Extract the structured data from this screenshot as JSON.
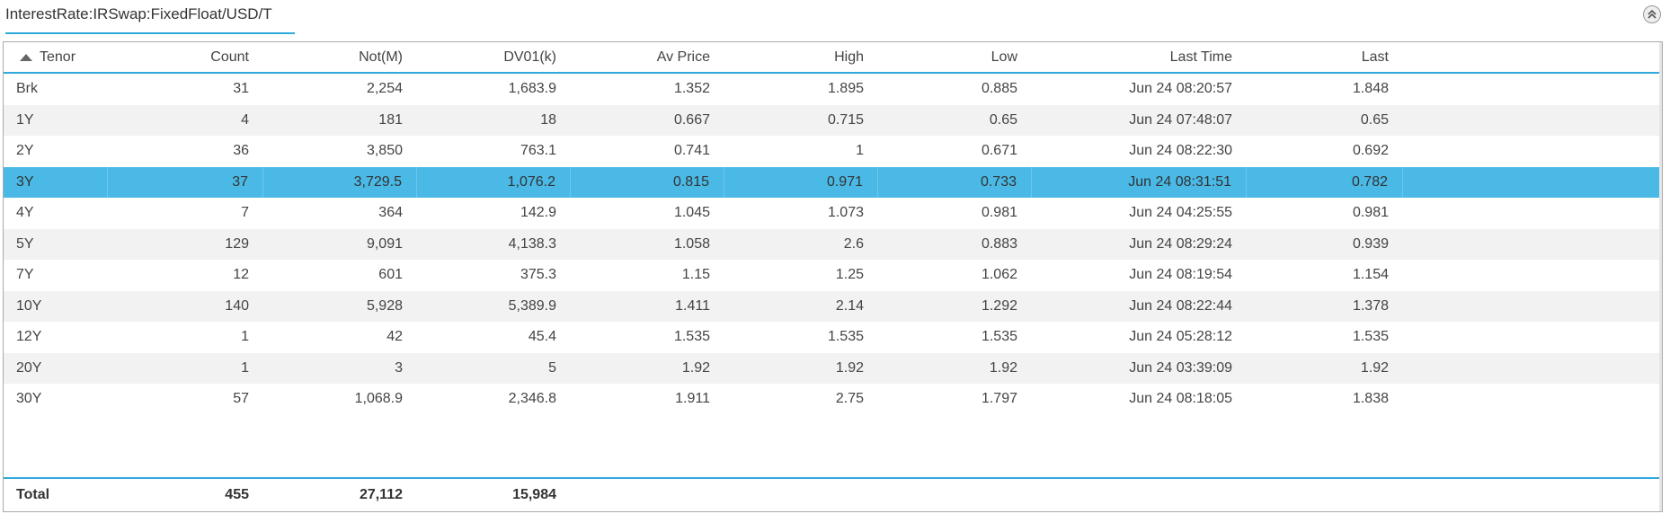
{
  "tab": {
    "title": "InterestRate:IRSwap:FixedFloat/USD/T"
  },
  "collapse_icon": "double-chevron-up-icon",
  "columns": [
    "Tenor",
    "Count",
    "Not(M)",
    "DV01(k)",
    "Av Price",
    "High",
    "Low",
    "Last Time",
    "Last"
  ],
  "sorted_column": "Tenor",
  "selected_row": "3Y",
  "rows": [
    [
      "Brk",
      "31",
      "2,254",
      "1,683.9",
      "1.352",
      "1.895",
      "0.885",
      "Jun 24 08:20:57",
      "1.848"
    ],
    [
      "1Y",
      "4",
      "181",
      "18",
      "0.667",
      "0.715",
      "0.65",
      "Jun 24 07:48:07",
      "0.65"
    ],
    [
      "2Y",
      "36",
      "3,850",
      "763.1",
      "0.741",
      "1",
      "0.671",
      "Jun 24 08:22:30",
      "0.692"
    ],
    [
      "3Y",
      "37",
      "3,729.5",
      "1,076.2",
      "0.815",
      "0.971",
      "0.733",
      "Jun 24 08:31:51",
      "0.782"
    ],
    [
      "4Y",
      "7",
      "364",
      "142.9",
      "1.045",
      "1.073",
      "0.981",
      "Jun 24 04:25:55",
      "0.981"
    ],
    [
      "5Y",
      "129",
      "9,091",
      "4,138.3",
      "1.058",
      "2.6",
      "0.883",
      "Jun 24 08:29:24",
      "0.939"
    ],
    [
      "7Y",
      "12",
      "601",
      "375.3",
      "1.15",
      "1.25",
      "1.062",
      "Jun 24 08:19:54",
      "1.154"
    ],
    [
      "10Y",
      "140",
      "5,928",
      "5,389.9",
      "1.411",
      "2.14",
      "1.292",
      "Jun 24 08:22:44",
      "1.378"
    ],
    [
      "12Y",
      "1",
      "42",
      "45.4",
      "1.535",
      "1.535",
      "1.535",
      "Jun 24 05:28:12",
      "1.535"
    ],
    [
      "20Y",
      "1",
      "3",
      "5",
      "1.92",
      "1.92",
      "1.92",
      "Jun 24 03:39:09",
      "1.92"
    ],
    [
      "30Y",
      "57",
      "1,068.9",
      "2,346.8",
      "1.911",
      "2.75",
      "1.797",
      "Jun 24 08:18:05",
      "1.838"
    ]
  ],
  "totals": [
    "Total",
    "455",
    "27,112",
    "15,984",
    "",
    "",
    "",
    "",
    ""
  ],
  "colors": {
    "accent": "#2fa9dc",
    "selected_row": "#4ab9e6",
    "stripe": "#f2f2f2"
  }
}
